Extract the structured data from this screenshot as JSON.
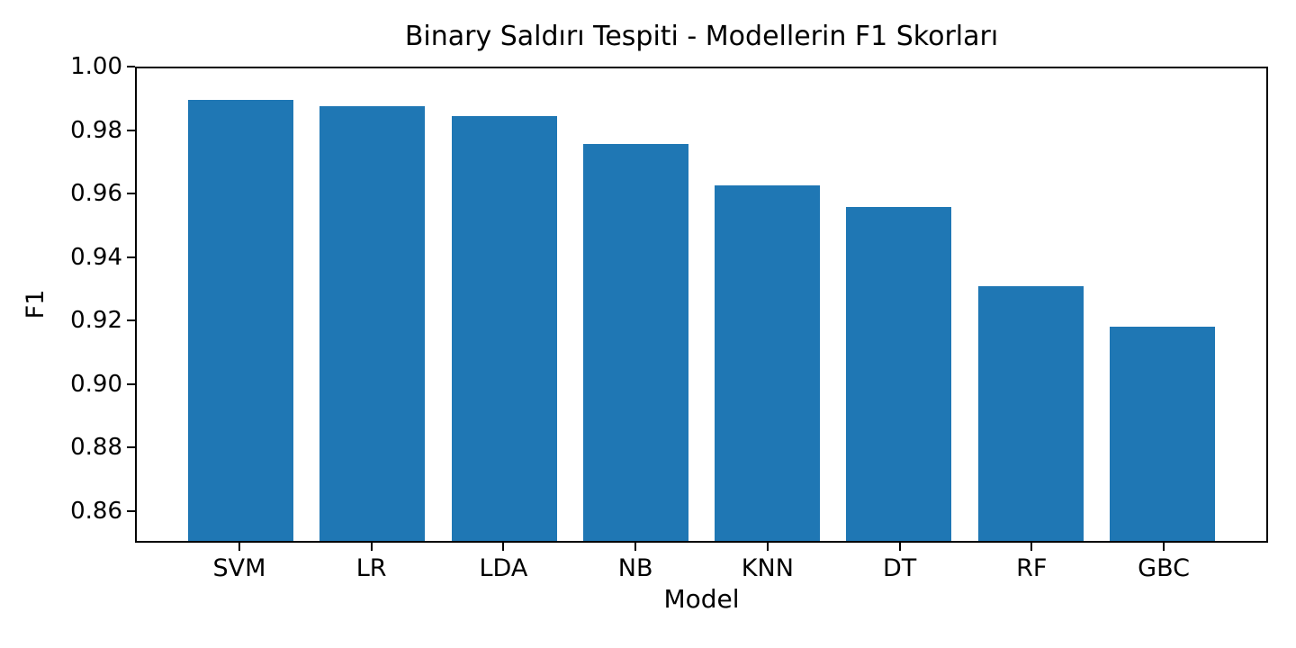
{
  "chart_data": {
    "type": "bar",
    "title": "Binary Saldırı Tespiti - Modellerin F1 Skorları",
    "xlabel": "Model",
    "ylabel": "F1",
    "categories": [
      "SVM",
      "LR",
      "LDA",
      "NB",
      "KNN",
      "DT",
      "RF",
      "GBC"
    ],
    "values": [
      0.99,
      0.988,
      0.985,
      0.976,
      0.963,
      0.956,
      0.931,
      0.918
    ],
    "ylim": [
      0.85,
      1.0
    ],
    "yticks": [
      1.0,
      0.98,
      0.96,
      0.94,
      0.92,
      0.9,
      0.88,
      0.86
    ],
    "ytick_labels": [
      "1.00",
      "0.98",
      "0.96",
      "0.94",
      "0.92",
      "0.90",
      "0.88",
      "0.86"
    ],
    "bar_color": "#1f77b4",
    "axis_color": "#000000",
    "background_color": "#ffffff",
    "grid": false,
    "legend": "none"
  }
}
